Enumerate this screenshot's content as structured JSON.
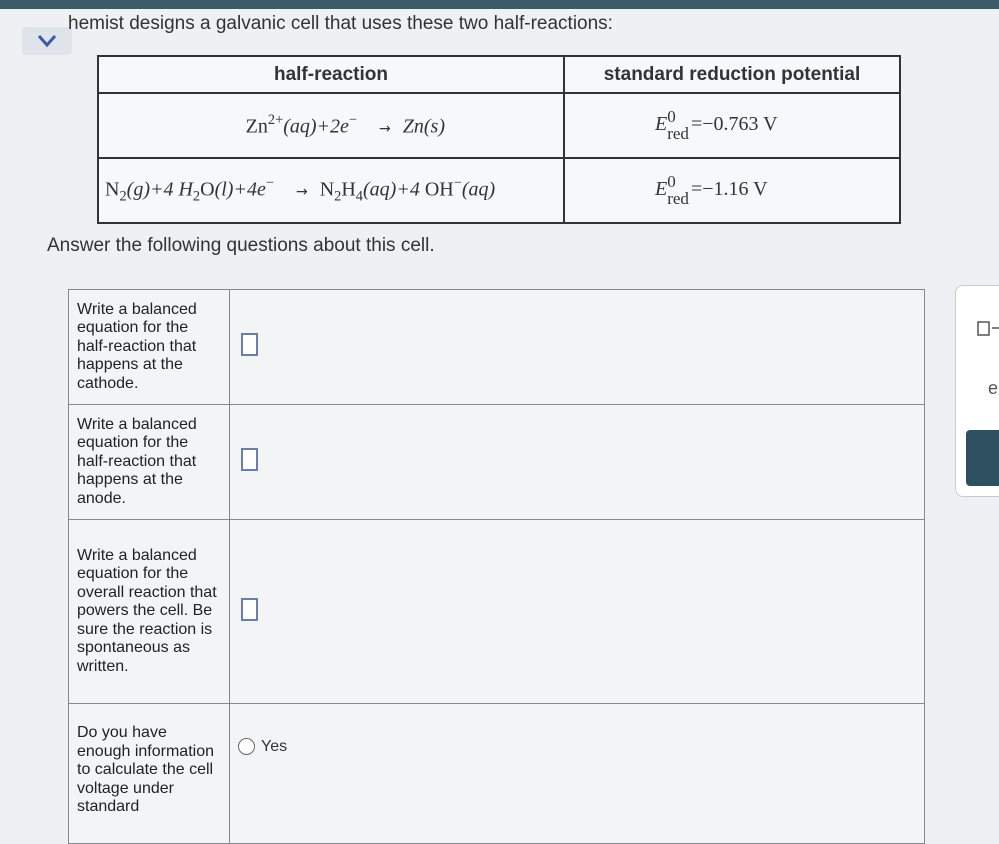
{
  "header": {
    "title": "hemist designs a galvanic cell that uses these two half-reactions:"
  },
  "table": {
    "columns": [
      "half-reaction",
      "standard reduction potential"
    ],
    "rows": [
      {
        "reaction": [
          {
            "s": "n",
            "t": "Zn"
          },
          {
            "s": "sup",
            "t": "2+"
          },
          {
            "s": "i",
            "t": "(aq)+2e"
          },
          {
            "s": "sup",
            "t": "−"
          },
          {
            "s": "arrow",
            "t": "→"
          },
          {
            "s": "i",
            "t": "Zn(s)"
          }
        ],
        "potential": [
          {
            "s": "i",
            "t": "E"
          },
          {
            "s": "stack",
            "sup": "0",
            "sub": "red"
          },
          {
            "s": "n",
            "t": "=−0.763 V"
          }
        ]
      },
      {
        "reaction": [
          {
            "s": "n",
            "t": "N"
          },
          {
            "s": "sub",
            "t": "2"
          },
          {
            "s": "i",
            "t": "(g)+4 H"
          },
          {
            "s": "sub",
            "t": "2"
          },
          {
            "s": "n",
            "t": "O"
          },
          {
            "s": "i",
            "t": "(l)+4e"
          },
          {
            "s": "sup",
            "t": "−"
          },
          {
            "s": "arrow",
            "t": "→"
          },
          {
            "s": "n",
            "t": "N"
          },
          {
            "s": "sub",
            "t": "2"
          },
          {
            "s": "n",
            "t": "H"
          },
          {
            "s": "sub",
            "t": "4"
          },
          {
            "s": "i",
            "t": "(aq)+4 "
          },
          {
            "s": "n",
            "t": "OH"
          },
          {
            "s": "sup",
            "t": "−"
          },
          {
            "s": "i",
            "t": "(aq)"
          }
        ],
        "potential": [
          {
            "s": "i",
            "t": "E"
          },
          {
            "s": "stack",
            "sup": "0",
            "sub": "red"
          },
          {
            "s": "n",
            "t": "=−1.16 V"
          }
        ]
      }
    ]
  },
  "prompt": "Answer the following questions about this cell.",
  "questions": [
    {
      "text": "Write a balanced equation for the half-reaction that happens at the cathode.",
      "answer": "box"
    },
    {
      "text": "Write a balanced equation for the half-reaction that happens at the anode.",
      "answer": "box"
    },
    {
      "text": "Write a balanced equation for the overall reaction that powers the cell. Be sure the reaction is spontaneous as written.",
      "answer": "box"
    },
    {
      "text": "Do you have enough information to calculate the cell voltage under standard",
      "answer": "radio",
      "options": [
        "Yes"
      ]
    }
  ],
  "side": {
    "label": "e"
  }
}
